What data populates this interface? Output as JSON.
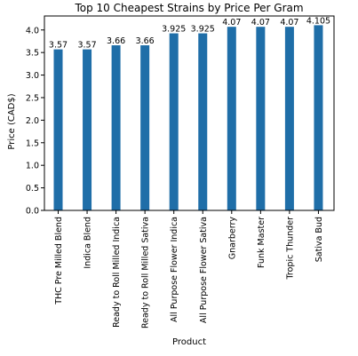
{
  "chart_data": {
    "type": "bar",
    "title": "Top 10 Cheapest Strains by Price Per Gram",
    "xlabel": "Product",
    "ylabel": "Price (CAD$)",
    "categories": [
      "THC Pre Milled Blend",
      "Indica Blend",
      "Ready to Roll Milled Indica",
      "Ready to Roll Milled Sativa",
      "All Purpose Flower Indica",
      "All Purpose Flower Sativa",
      "Gnarberry",
      "Funk Master",
      "Tropic Thunder",
      "Sativa Bud"
    ],
    "values": [
      3.57,
      3.57,
      3.66,
      3.66,
      3.925,
      3.925,
      4.07,
      4.07,
      4.07,
      4.105
    ],
    "data_labels": [
      "3.57",
      "3.57",
      "3.66",
      "3.66",
      "3.925",
      "3.925",
      "4.07",
      "4.07",
      "4.07",
      "4.105"
    ],
    "ylim": [
      0,
      4.31
    ],
    "yticks": [
      0.0,
      0.5,
      1.0,
      1.5,
      2.0,
      2.5,
      3.0,
      3.5,
      4.0
    ],
    "ytick_labels": [
      "0.0",
      "0.5",
      "1.0",
      "1.5",
      "2.0",
      "2.5",
      "3.0",
      "3.5",
      "4.0"
    ],
    "grid": false,
    "bar_color": "#1f6ea8"
  }
}
